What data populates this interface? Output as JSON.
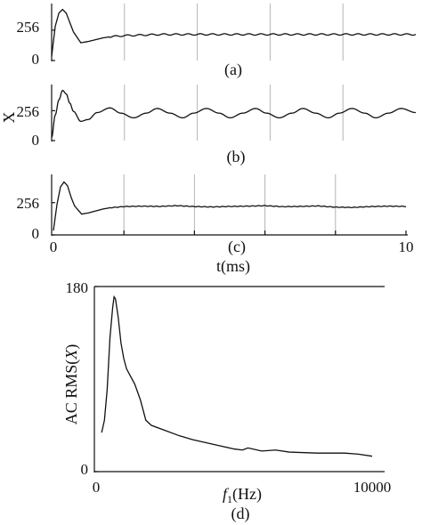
{
  "chart_data": [
    {
      "id": "a",
      "type": "line",
      "caption": "(a)",
      "ylabel": "",
      "yticks": [
        "256",
        "0"
      ],
      "ytick_values": [
        256,
        0
      ],
      "ylim": [
        0,
        480
      ],
      "xlim": [
        0,
        10
      ],
      "vlines": [
        2,
        4,
        6,
        8
      ],
      "series": [
        {
          "x": [
            0,
            0.1,
            0.2,
            0.3,
            0.4,
            0.5,
            0.6,
            0.8,
            1.0,
            1.2,
            1.4,
            1.6,
            2.0,
            2.5,
            3,
            4,
            5,
            6,
            7,
            8,
            9,
            10
          ],
          "y": [
            35,
            290,
            400,
            430,
            400,
            320,
            240,
            150,
            160,
            175,
            190,
            200,
            210,
            215,
            220,
            220,
            220,
            220,
            220,
            220,
            220,
            220
          ]
        }
      ]
    },
    {
      "id": "b",
      "type": "line",
      "caption": "(b)",
      "ylabel": "X",
      "yticks": [
        "256",
        "0"
      ],
      "ytick_values": [
        256,
        0
      ],
      "ylim": [
        0,
        480
      ],
      "xlim": [
        0,
        10
      ],
      "vlines": [
        2,
        4,
        6,
        8
      ],
      "series": [
        {
          "x": [
            0,
            0.1,
            0.2,
            0.3,
            0.4,
            0.5,
            0.6,
            0.8,
            1.0,
            1.25,
            1.6,
            1.9,
            2.25,
            2.6,
            2.9,
            3.25,
            3.6,
            3.9,
            4.25,
            4.6,
            4.9,
            5.25,
            5.6,
            5.9,
            6.25,
            6.6,
            6.9,
            7.25,
            7.6,
            7.9,
            8.25,
            8.6,
            8.9,
            9.25,
            9.6,
            10
          ],
          "y": [
            25,
            220,
            350,
            430,
            400,
            320,
            250,
            165,
            180,
            240,
            280,
            235,
            195,
            235,
            275,
            235,
            195,
            235,
            275,
            235,
            195,
            235,
            275,
            235,
            195,
            235,
            275,
            235,
            195,
            235,
            275,
            235,
            195,
            235,
            275,
            240
          ]
        }
      ]
    },
    {
      "id": "c",
      "type": "line",
      "caption": "(c)",
      "ylabel": "",
      "xlabel": "t(ms)",
      "yticks": [
        "256",
        "0"
      ],
      "ytick_values": [
        256,
        0
      ],
      "ylim": [
        0,
        480
      ],
      "xlim": [
        0,
        10
      ],
      "xticks": [
        "0",
        "10"
      ],
      "xtick_values": [
        0,
        10
      ],
      "vlines": [
        2,
        4,
        6,
        8
      ],
      "series": [
        {
          "x": [
            0,
            0.1,
            0.2,
            0.3,
            0.4,
            0.5,
            0.6,
            0.8,
            1.0,
            1.2,
            1.4,
            1.6,
            2.0,
            2.5,
            3,
            3.5,
            4,
            4.5,
            5,
            5.5,
            6,
            6.5,
            7,
            7.5,
            8,
            8.5,
            9,
            9.5,
            10
          ],
          "y": [
            35,
            240,
            380,
            420,
            390,
            300,
            230,
            165,
            175,
            190,
            205,
            215,
            225,
            228,
            226,
            232,
            225,
            222,
            226,
            228,
            232,
            224,
            226,
            230,
            220,
            218,
            225,
            228,
            226
          ]
        }
      ]
    },
    {
      "id": "d",
      "type": "line",
      "caption": "(d)",
      "ylabel": "AC RMS(X)",
      "xlabel": "f1(Hz)",
      "xlim": [
        0,
        10000
      ],
      "ylim": [
        0,
        180
      ],
      "xticks": [
        "0",
        "10000"
      ],
      "xtick_values": [
        0,
        10000
      ],
      "yticks": [
        "180",
        "0"
      ],
      "ytick_values": [
        180,
        0
      ],
      "series": [
        {
          "x": [
            200,
            300,
            400,
            500,
            600,
            650,
            700,
            800,
            900,
            1000,
            1100,
            1200,
            1400,
            1600,
            1800,
            2000,
            2500,
            3000,
            3500,
            4000,
            4500,
            5000,
            5300,
            5500,
            6000,
            6500,
            7000,
            8000,
            9000,
            9500,
            10000
          ],
          "y": [
            38,
            50,
            80,
            130,
            160,
            170,
            168,
            150,
            125,
            110,
            100,
            95,
            85,
            70,
            50,
            45,
            40,
            35,
            31,
            28,
            25,
            22,
            21,
            23,
            20,
            21,
            19,
            18,
            18,
            17,
            15
          ]
        }
      ]
    }
  ]
}
